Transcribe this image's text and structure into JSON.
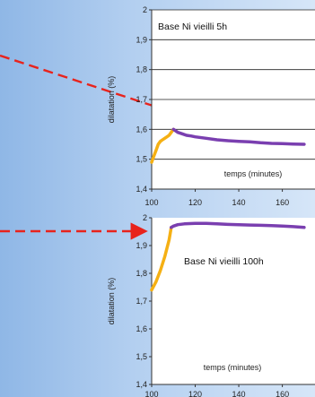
{
  "chart_data": [
    {
      "type": "line",
      "title": "Base Ni vieilli 5h",
      "xlabel": "temps (minutes)",
      "ylabel": "dilatation (%)",
      "xlim": [
        100,
        175
      ],
      "ylim": [
        1.4,
        2.0
      ],
      "x_ticks": [
        "100",
        "120",
        "140",
        "160"
      ],
      "y_ticks": [
        "1,4",
        "1,5",
        "1,6",
        "1,7",
        "1,8",
        "1,9",
        "2"
      ],
      "grid": true,
      "series": [
        {
          "color": "#f5b014",
          "x": [
            100,
            101,
            102,
            103,
            104,
            105,
            106,
            107,
            108,
            109,
            110
          ],
          "y": [
            1.49,
            1.51,
            1.53,
            1.55,
            1.56,
            1.565,
            1.57,
            1.575,
            1.58,
            1.59,
            1.6
          ]
        },
        {
          "color": "#7a3fb0",
          "x": [
            110,
            112,
            114,
            116,
            118,
            120,
            125,
            130,
            135,
            140,
            145,
            150,
            155,
            160,
            165,
            170
          ],
          "y": [
            1.6,
            1.59,
            1.585,
            1.58,
            1.578,
            1.575,
            1.57,
            1.565,
            1.562,
            1.56,
            1.558,
            1.555,
            1.553,
            1.552,
            1.551,
            1.55
          ]
        }
      ]
    },
    {
      "type": "line",
      "title": "Base Ni vieilli 100h",
      "xlabel": "temps (minutes)",
      "ylabel": "dilatation (%)",
      "xlim": [
        100,
        175
      ],
      "ylim": [
        1.4,
        2.0
      ],
      "x_ticks": [
        "100",
        "120",
        "140",
        "160"
      ],
      "y_ticks": [
        "1,4",
        "1,5",
        "1,6",
        "1,7",
        "1,8",
        "1,9",
        "2"
      ],
      "grid": false,
      "series": [
        {
          "color": "#f5b014",
          "x": [
            100,
            102,
            104,
            106,
            108,
            109
          ],
          "y": [
            1.74,
            1.77,
            1.81,
            1.86,
            1.92,
            1.965
          ]
        },
        {
          "color": "#7a3fb0",
          "x": [
            109,
            110,
            112,
            115,
            120,
            125,
            130,
            135,
            140,
            145,
            150,
            155,
            160,
            165,
            170
          ],
          "y": [
            1.965,
            1.97,
            1.975,
            1.978,
            1.98,
            1.98,
            1.978,
            1.976,
            1.975,
            1.974,
            1.973,
            1.972,
            1.97,
            1.968,
            1.965
          ]
        }
      ]
    }
  ]
}
